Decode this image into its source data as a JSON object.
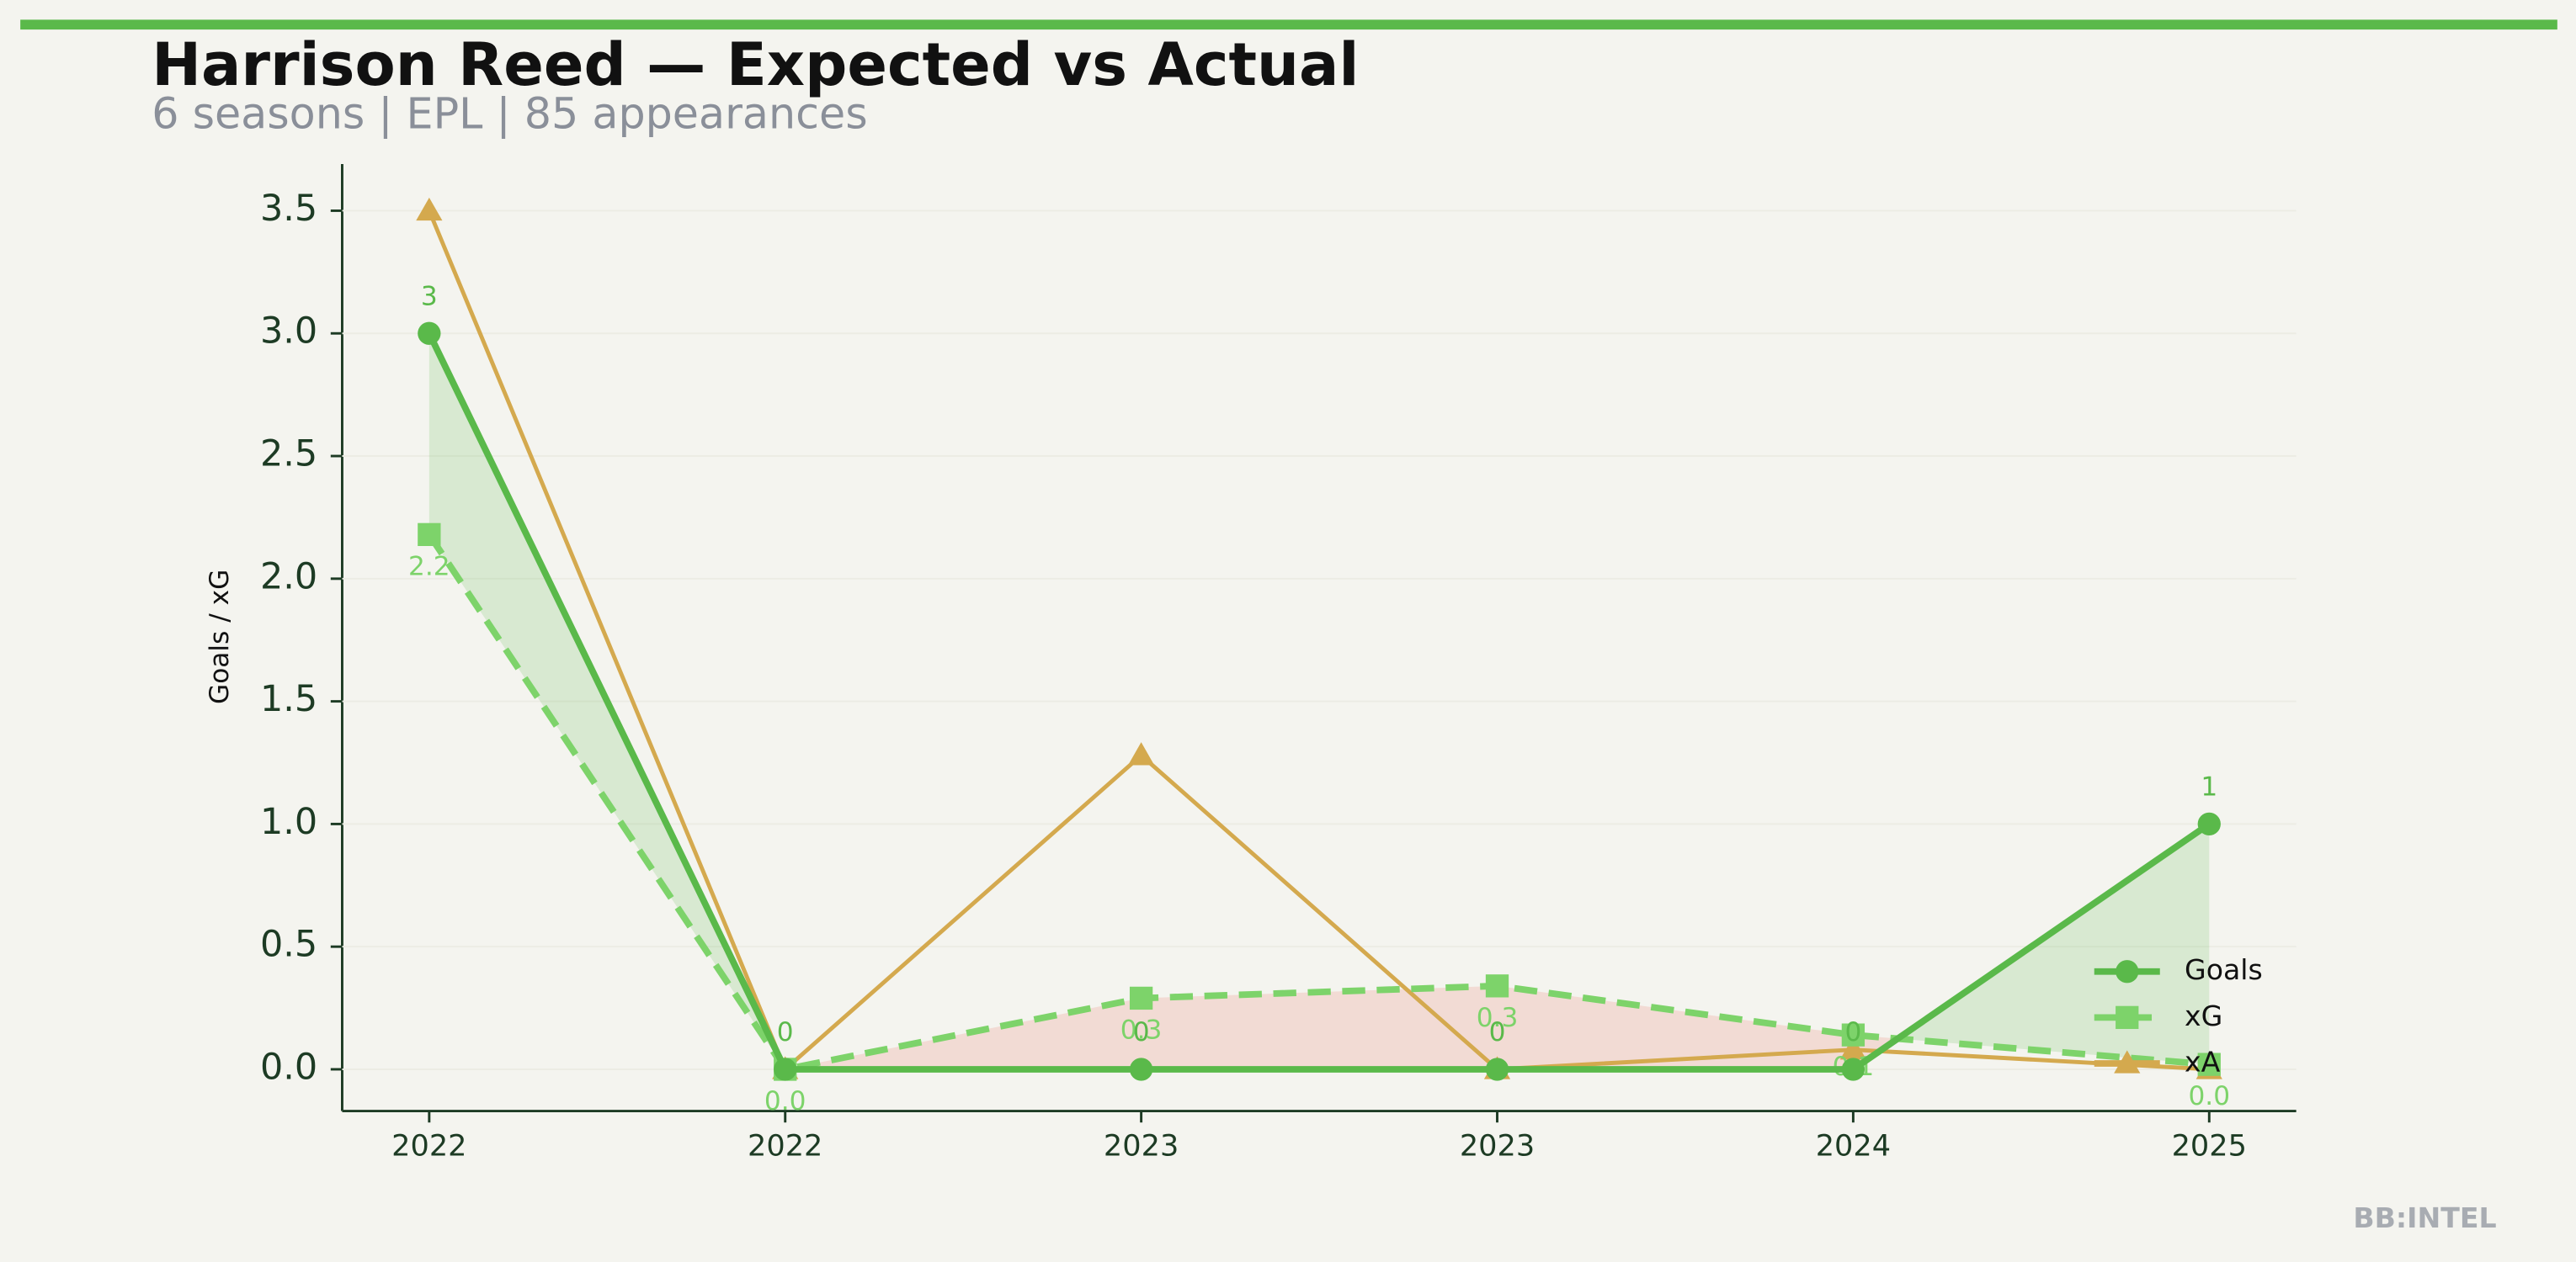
{
  "chart_data": {
    "type": "line",
    "title": "Harrison Reed — Expected vs Actual",
    "subtitle": "6 seasons | EPL | 85 appearances",
    "ylabel": "Goals / xG",
    "watermark": "BB:INTEL",
    "categories": [
      "2022",
      "2022",
      "2023",
      "2023",
      "2024",
      "2025"
    ],
    "series": [
      {
        "name": "Goals",
        "color": "#5ab94a",
        "marker": "circle",
        "dash": false,
        "values": [
          3,
          0,
          0,
          0,
          0,
          1
        ],
        "show_labels": true
      },
      {
        "name": "xG",
        "color": "#7dd36a",
        "marker": "square",
        "dash": true,
        "values": [
          2.18,
          0,
          0.29,
          0.34,
          0.14,
          0.02
        ],
        "value_labels": [
          "2.2",
          "0.0",
          "0.3",
          "0.3",
          "0.1",
          "0.0"
        ],
        "show_labels": true
      },
      {
        "name": "xA",
        "color": "#d4a94e",
        "marker": "triangle",
        "dash": false,
        "values": [
          3.5,
          0,
          1.28,
          0,
          0.08,
          0
        ],
        "show_labels": false
      }
    ],
    "ylim": [
      -0.17,
      3.69
    ],
    "yticks": [
      {
        "value": 0,
        "label": "0.0"
      },
      {
        "value": 0.5,
        "label": "0.5"
      },
      {
        "value": 1,
        "label": "1.0"
      },
      {
        "value": 1.5,
        "label": "1.5"
      },
      {
        "value": 2,
        "label": "2.0"
      },
      {
        "value": 2.5,
        "label": "2.5"
      },
      {
        "value": 3,
        "label": "3.0"
      },
      {
        "value": 3.5,
        "label": "3.5"
      }
    ],
    "grid": true,
    "legend": "lower right"
  }
}
